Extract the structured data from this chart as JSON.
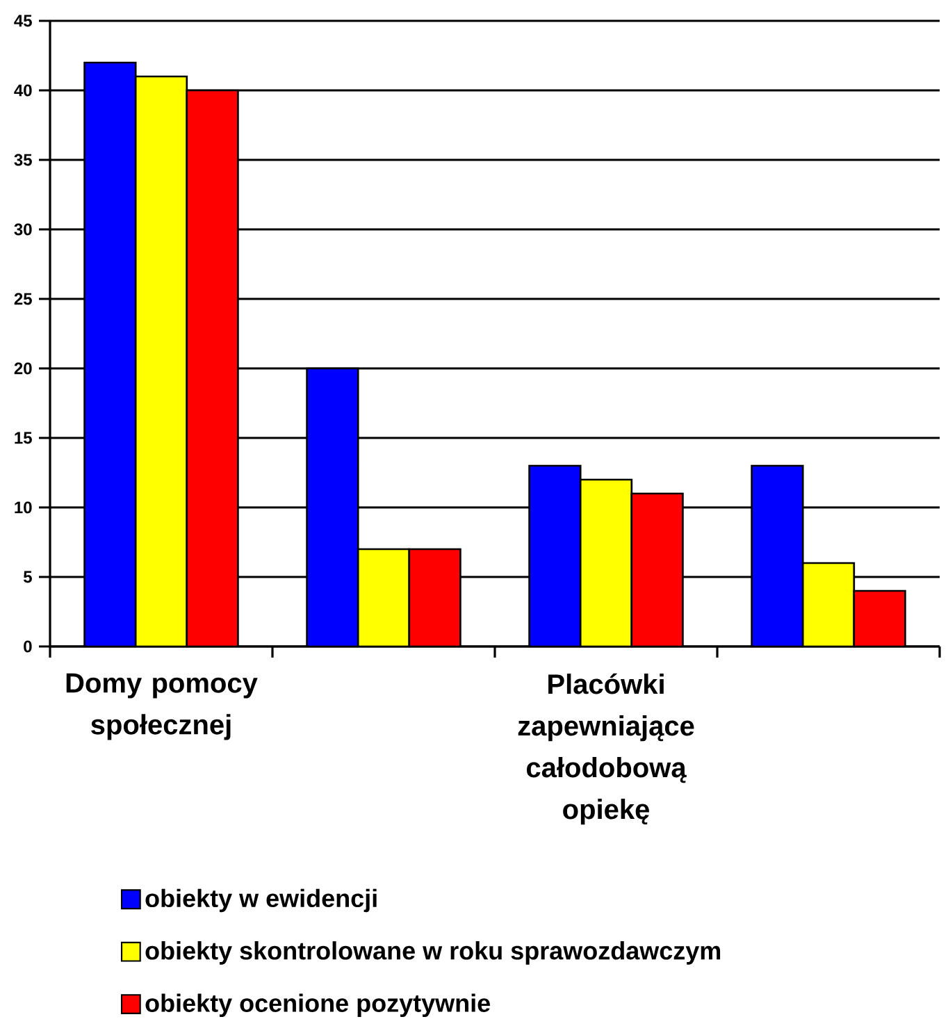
{
  "chart_data": {
    "type": "bar",
    "categories": [
      "Domy pomocy społecznej",
      null,
      "Placówki zapewniające całodobową opiekę",
      null
    ],
    "series": [
      {
        "name": "obiekty w ewidencji",
        "color": "#0000ff",
        "values": [
          42,
          20,
          13,
          13
        ]
      },
      {
        "name": "obiekty skontrolowane w roku sprawozdawczym",
        "color": "#ffff00",
        "values": [
          41,
          7,
          12,
          6
        ]
      },
      {
        "name": "obiekty ocenione pozytywnie",
        "color": "#ff0000",
        "values": [
          40,
          7,
          11,
          4
        ]
      }
    ],
    "ylim": [
      0,
      45
    ],
    "yticks": [
      0,
      5,
      10,
      15,
      20,
      25,
      30,
      35,
      40,
      45
    ],
    "grid": "y",
    "legend": "bottom"
  }
}
